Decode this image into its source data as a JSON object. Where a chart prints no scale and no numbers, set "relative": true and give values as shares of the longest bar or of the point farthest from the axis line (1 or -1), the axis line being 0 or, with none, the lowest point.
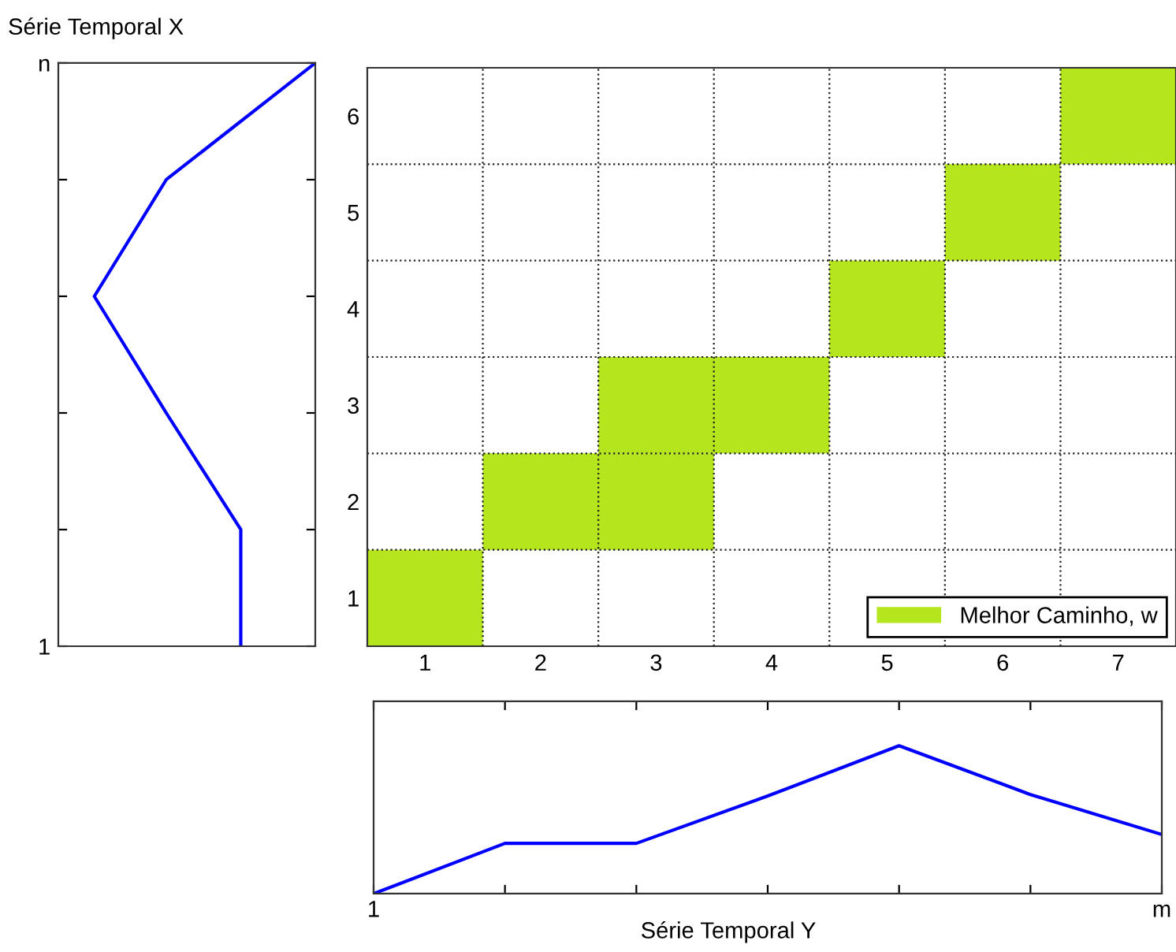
{
  "chart_data": [
    {
      "type": "line",
      "title": "Série Temporal X",
      "orientation": "horizontal",
      "relative": true,
      "categories": [
        "n",
        null,
        null,
        null,
        null,
        "1"
      ],
      "series": [
        {
          "color": "#0000ff",
          "values": [
            1.0,
            0.42,
            0.14,
            0.42,
            0.71,
            0.71
          ]
        }
      ]
    },
    {
      "type": "bar",
      "orientation": "horizontal",
      "categories": [
        "6",
        "5",
        "4",
        "3",
        "2",
        "1"
      ],
      "series": [
        {
          "name": "Melhor Caminho, w",
          "color": "#b5e61d",
          "values": [
            1,
            1,
            1,
            2,
            2,
            1
          ],
          "base": [
            6.5,
            5.5,
            4.5,
            2.5,
            1.5,
            0.5
          ]
        }
      ],
      "xlim": [
        0.5,
        7.5
      ],
      "xticks": [
        1,
        2,
        3,
        4,
        5,
        6,
        7
      ],
      "grid": true,
      "legend": "bottom right"
    },
    {
      "type": "line",
      "xlabel": "Série Temporal Y",
      "relative": true,
      "categories": [
        "1",
        null,
        null,
        null,
        null,
        null,
        "m"
      ],
      "series": [
        {
          "color": "#0000ff",
          "values": [
            0,
            0.34,
            0.34,
            0.66,
            1.0,
            0.67,
            0.4
          ]
        }
      ]
    }
  ]
}
